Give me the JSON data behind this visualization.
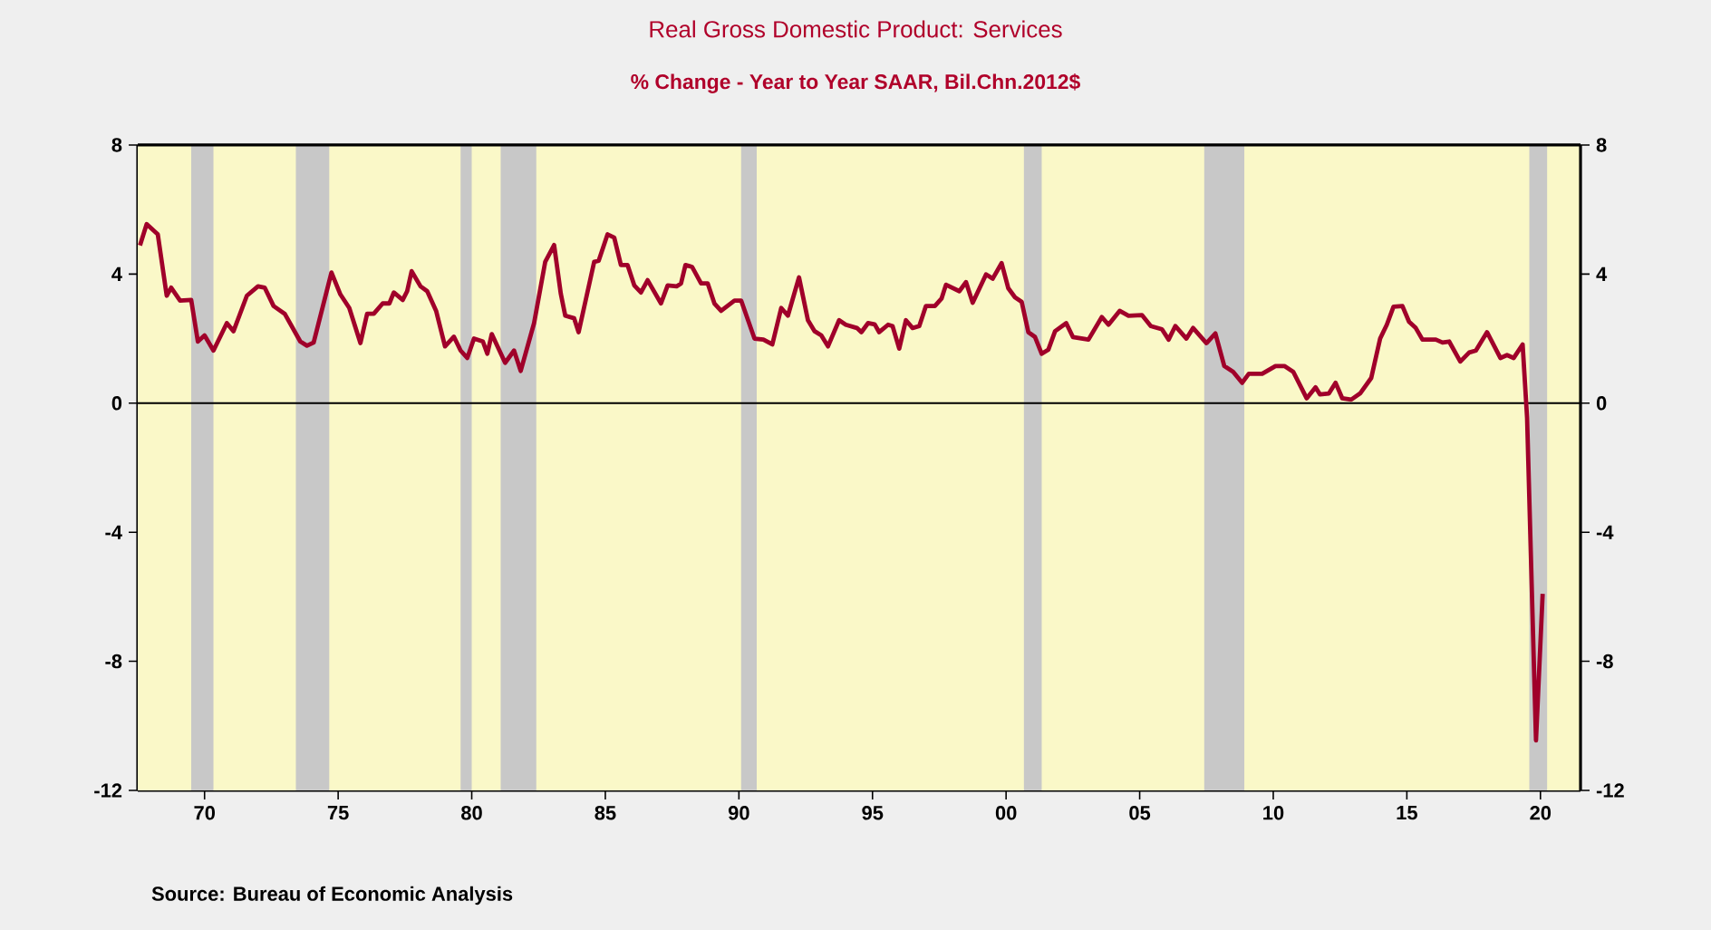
{
  "chart_data": {
    "type": "line",
    "title": "Real Gross Domestic Product: Services",
    "subtitle": "% Change - Year to Year     SAAR, Bil.Chn.2012$",
    "annotations": [
      "Source:  Bureau of Economic Analysis"
    ],
    "xlim": [
      "1968-01",
      "2022-01"
    ],
    "xticks": [
      {
        "value": "1970-07",
        "label": "70"
      },
      {
        "value": "1975-07",
        "label": "75"
      },
      {
        "value": "1980-07",
        "label": "80"
      },
      {
        "value": "1985-07",
        "label": "85"
      },
      {
        "value": "1990-07",
        "label": "90"
      },
      {
        "value": "1995-07",
        "label": "95"
      },
      {
        "value": "2000-07",
        "label": "00"
      },
      {
        "value": "2005-07",
        "label": "05"
      },
      {
        "value": "2010-07",
        "label": "10"
      },
      {
        "value": "2015-07",
        "label": "15"
      },
      {
        "value": "2020-07",
        "label": "20"
      }
    ],
    "ylim": [
      -12,
      8
    ],
    "yticks": [
      -12,
      -8,
      -4,
      0,
      4,
      8
    ],
    "y2lim": [
      -12,
      8
    ],
    "y2ticks": [
      -12,
      -8,
      -4,
      0,
      4,
      8
    ],
    "ref_lines": [
      {
        "axis": "y",
        "value": 0,
        "color": "#000000"
      }
    ],
    "bands": [
      {
        "axis": "x",
        "from": "1970-01",
        "to": "1970-11",
        "color": "#c8c8c8"
      },
      {
        "axis": "x",
        "from": "1973-12",
        "to": "1975-03",
        "color": "#c8c8c8"
      },
      {
        "axis": "x",
        "from": "1980-02",
        "to": "1980-07",
        "color": "#c8c8c8"
      },
      {
        "axis": "x",
        "from": "1981-08",
        "to": "1982-12",
        "color": "#c8c8c8"
      },
      {
        "axis": "x",
        "from": "1990-08",
        "to": "1991-03",
        "color": "#c8c8c8"
      },
      {
        "axis": "x",
        "from": "2001-03",
        "to": "2001-11",
        "color": "#c8c8c8"
      },
      {
        "axis": "x",
        "from": "2007-12",
        "to": "2009-06",
        "color": "#c8c8c8"
      },
      {
        "axis": "x",
        "from": "2020-02",
        "to": "2020-10",
        "color": "#c8c8c8"
      }
    ],
    "series": [
      {
        "color": "#a0002a",
        "x": [
          "1968-02",
          "1968-05",
          "1968-10",
          "1969-02",
          "1969-04",
          "1969-08",
          "1970-01",
          "1970-04",
          "1970-07",
          "1970-11",
          "1971-05",
          "1971-08",
          "1972-02",
          "1972-07",
          "1972-10",
          "1973-02",
          "1973-07",
          "1974-02",
          "1974-05",
          "1974-08",
          "1975-04",
          "1975-08",
          "1975-12",
          "1976-05",
          "1976-08",
          "1976-11",
          "1977-03",
          "1977-06",
          "1977-08",
          "1977-12",
          "1978-02",
          "1978-04",
          "1978-08",
          "1978-11",
          "1979-03",
          "1979-07",
          "1979-11",
          "1980-02",
          "1980-05",
          "1980-08",
          "1980-12",
          "1981-02",
          "1981-04",
          "1981-10",
          "1982-02",
          "1982-05",
          "1982-11",
          "1983-04",
          "1983-08",
          "1983-11",
          "1984-01",
          "1984-05",
          "1984-07",
          "1985-02",
          "1985-04",
          "1985-08",
          "1985-11",
          "1986-02",
          "1986-05",
          "1986-08",
          "1986-11",
          "1987-02",
          "1987-08",
          "1987-11",
          "1988-03",
          "1988-05",
          "1988-07",
          "1988-10",
          "1989-02",
          "1989-05",
          "1989-08",
          "1989-11",
          "1990-05",
          "1990-08",
          "1991-02",
          "1991-06",
          "1991-10",
          "1992-02",
          "1992-05",
          "1992-10",
          "1993-02",
          "1993-05",
          "1993-08",
          "1993-11",
          "1994-04",
          "1994-07",
          "1994-12",
          "1995-02",
          "1995-05",
          "1995-08",
          "1995-10",
          "1996-02",
          "1996-04",
          "1996-07",
          "1996-10",
          "1997-01",
          "1997-04",
          "1997-07",
          "1997-11",
          "1998-02",
          "1998-04",
          "1998-10",
          "1999-01",
          "1999-04",
          "1999-10",
          "2000-01",
          "2000-05",
          "2000-08",
          "2000-11",
          "2001-02",
          "2001-05",
          "2001-08",
          "2001-11",
          "2002-02",
          "2002-05",
          "2002-10",
          "2003-01",
          "2003-08",
          "2004-02",
          "2004-05",
          "2004-10",
          "2005-02",
          "2005-08",
          "2005-12",
          "2006-05",
          "2006-08",
          "2006-11",
          "2007-04",
          "2007-07",
          "2008-01",
          "2008-05",
          "2008-09",
          "2009-01",
          "2009-05",
          "2009-08",
          "2010-02",
          "2010-08",
          "2010-12",
          "2011-04",
          "2011-10",
          "2012-02",
          "2012-04",
          "2012-08",
          "2012-11",
          "2013-02",
          "2013-06",
          "2013-10",
          "2014-03",
          "2014-07",
          "2014-10",
          "2015-01",
          "2015-05",
          "2015-08",
          "2015-11",
          "2016-02",
          "2016-08",
          "2016-11",
          "2017-02",
          "2017-07",
          "2017-11",
          "2018-02",
          "2018-07",
          "2019-01",
          "2019-04",
          "2019-07",
          "2019-11",
          "2020-01",
          "2020-05",
          "2020-08"
        ],
        "values": [
          4.89,
          5.55,
          5.23,
          3.33,
          3.58,
          3.18,
          3.2,
          1.91,
          2.1,
          1.63,
          2.48,
          2.23,
          3.33,
          3.62,
          3.58,
          3.01,
          2.77,
          1.91,
          1.78,
          1.88,
          4.05,
          3.37,
          2.95,
          1.86,
          2.77,
          2.77,
          3.09,
          3.09,
          3.43,
          3.2,
          3.47,
          4.09,
          3.62,
          3.47,
          2.86,
          1.76,
          2.06,
          1.63,
          1.4,
          2.0,
          1.91,
          1.53,
          2.14,
          1.25,
          1.63,
          1.0,
          2.48,
          4.38,
          4.9,
          3.39,
          2.71,
          2.63,
          2.2,
          4.38,
          4.41,
          5.23,
          5.13,
          4.28,
          4.28,
          3.65,
          3.43,
          3.81,
          3.09,
          3.65,
          3.62,
          3.71,
          4.28,
          4.22,
          3.71,
          3.71,
          3.09,
          2.86,
          3.18,
          3.18,
          2.0,
          1.97,
          1.82,
          2.95,
          2.71,
          3.9,
          2.57,
          2.23,
          2.1,
          1.76,
          2.57,
          2.43,
          2.33,
          2.2,
          2.48,
          2.44,
          2.2,
          2.43,
          2.39,
          1.69,
          2.57,
          2.33,
          2.39,
          3.01,
          3.01,
          3.24,
          3.67,
          3.47,
          3.75,
          3.11,
          3.99,
          3.86,
          4.34,
          3.56,
          3.28,
          3.14,
          2.2,
          2.05,
          1.53,
          1.66,
          2.23,
          2.48,
          2.05,
          1.97,
          2.67,
          2.43,
          2.86,
          2.71,
          2.73,
          2.39,
          2.29,
          1.97,
          2.39,
          2.0,
          2.33,
          1.86,
          2.16,
          1.15,
          0.97,
          0.63,
          0.91,
          0.91,
          1.15,
          1.15,
          0.97,
          0.15,
          0.49,
          0.27,
          0.3,
          0.63,
          0.15,
          0.11,
          0.3,
          0.78,
          2.0,
          2.43,
          2.99,
          3.01,
          2.52,
          2.33,
          1.97,
          1.97,
          1.88,
          1.91,
          1.29,
          1.57,
          1.63,
          2.2,
          1.4,
          1.49,
          1.4,
          1.82,
          -0.45,
          -10.45,
          -5.91
        ]
      }
    ]
  }
}
